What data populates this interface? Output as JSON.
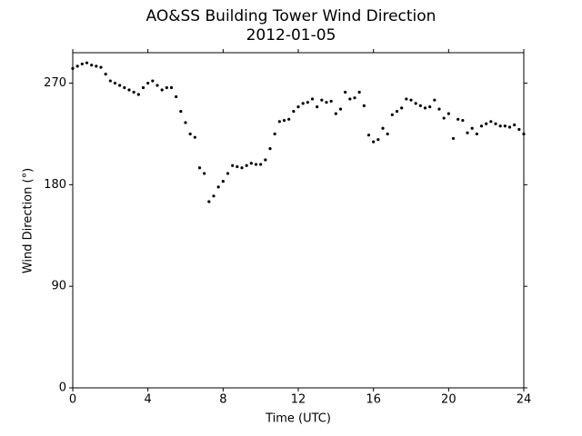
{
  "chart_data": {
    "type": "scatter",
    "title": "AO&SS Building Tower Wind Direction",
    "subtitle": "2012-01-05",
    "x_label": "Time (UTC)",
    "y_label": "Wind Direction (°)",
    "color": "#000000",
    "x": [
      0,
      0.25,
      0.5,
      0.75,
      1,
      1.25,
      1.5,
      1.75,
      2,
      2.25,
      2.5,
      2.75,
      3,
      3.25,
      3.5,
      3.75,
      4,
      4.25,
      4.5,
      4.75,
      5,
      5.25,
      5.5,
      5.75,
      6,
      6.25,
      6.5,
      6.75,
      7,
      7.25,
      7.5,
      7.75,
      8,
      8.25,
      8.5,
      8.75,
      9,
      9.25,
      9.5,
      9.75,
      10,
      10.25,
      10.5,
      10.75,
      11,
      11.25,
      11.5,
      11.75,
      12,
      12.25,
      12.5,
      12.75,
      13,
      13.25,
      13.5,
      13.75,
      14,
      14.25,
      14.5,
      14.75,
      15,
      15.25,
      15.5,
      15.75,
      16,
      16.25,
      16.5,
      16.75,
      17,
      17.25,
      17.5,
      17.75,
      18,
      18.25,
      18.5,
      18.75,
      19,
      19.25,
      19.5,
      19.75,
      20,
      20.25,
      20.5,
      20.75,
      21,
      21.25,
      21.5,
      21.75,
      22,
      22.25,
      22.5,
      22.75,
      23,
      23.25,
      23.5,
      23.75,
      24
    ],
    "values": [
      283,
      285,
      287,
      288,
      286,
      285,
      284,
      278,
      272,
      270,
      268,
      266,
      264,
      262,
      260,
      266,
      270,
      272,
      268,
      264,
      266,
      266,
      258,
      245,
      235,
      225,
      222,
      195,
      190,
      165,
      170,
      178,
      183,
      190,
      197,
      196,
      195,
      197,
      199,
      198,
      198,
      202,
      212,
      225,
      236,
      237,
      238,
      245,
      249,
      252,
      253,
      256,
      249,
      255,
      253,
      254,
      243,
      247,
      262,
      256,
      257,
      262,
      250,
      224,
      218,
      220,
      230,
      225,
      242,
      245,
      248,
      256,
      255,
      252,
      250,
      248,
      249,
      255,
      247,
      239,
      243,
      221,
      238,
      237,
      226,
      230,
      225,
      232,
      234,
      236,
      234,
      232,
      232,
      231,
      233,
      229,
      225
    ],
    "xlim": [
      0,
      24
    ],
    "ylim": [
      0,
      297
    ],
    "xticks": [
      0,
      4,
      8,
      12,
      16,
      20,
      24
    ],
    "yticks": [
      0,
      90,
      180,
      270
    ]
  }
}
